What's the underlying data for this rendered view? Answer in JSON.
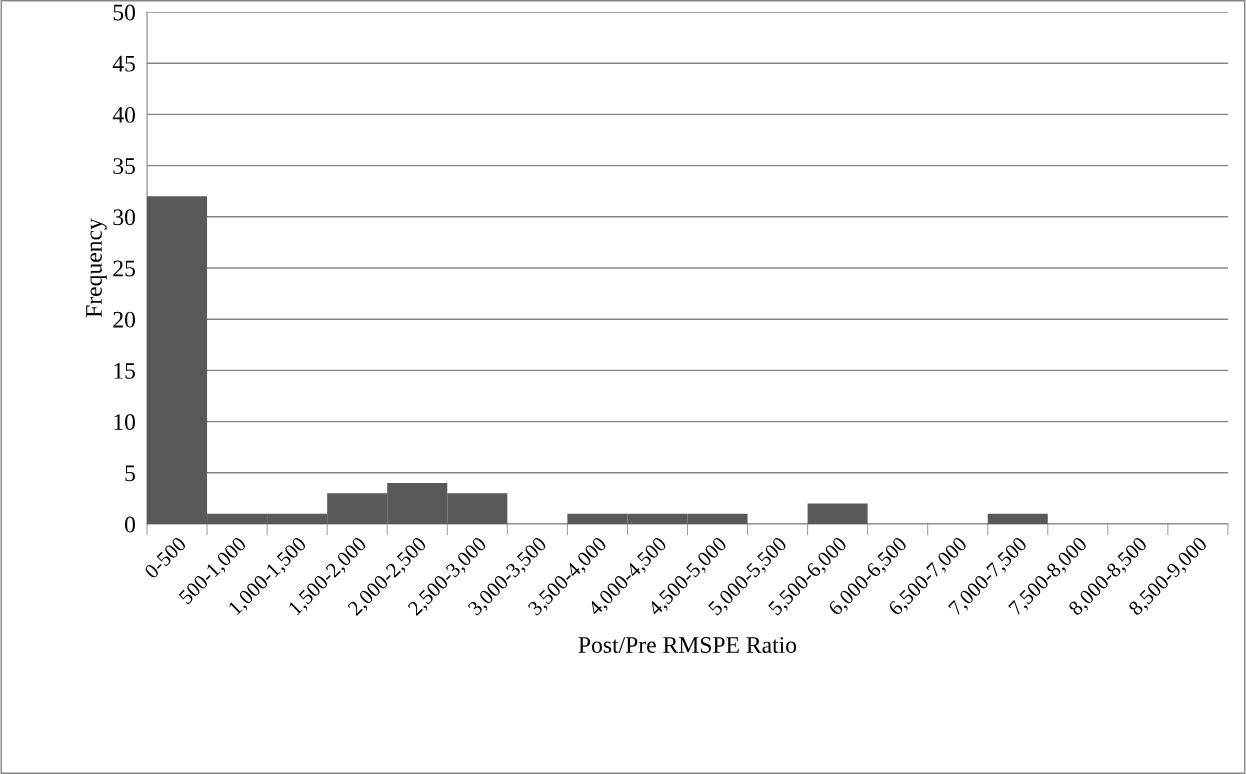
{
  "chart_data": {
    "type": "bar",
    "xlabel": "Post/Pre RMSPE Ratio",
    "ylabel": "Frequency",
    "categories": [
      "0-500",
      "500-1,000",
      "1,000-1,500",
      "1,500-2,000",
      "2,000-2,500",
      "2,500-3,000",
      "3,000-3,500",
      "3,500-4,000",
      "4,000-4,500",
      "4,500-5,000",
      "5,000-5,500",
      "5,500-6,000",
      "6,000-6,500",
      "6,500-7,000",
      "7,000-7,500",
      "7,500-8,000",
      "8,000-8,500",
      "8,500-9,000"
    ],
    "values": [
      32,
      1,
      1,
      3,
      4,
      3,
      0,
      1,
      1,
      1,
      0,
      2,
      0,
      0,
      1,
      0,
      0,
      0
    ],
    "color": "#595959",
    "ylim": [
      0,
      50
    ],
    "yticks": [
      0,
      5,
      10,
      15,
      20,
      25,
      30,
      35,
      40,
      45,
      50
    ],
    "grid": "y"
  }
}
